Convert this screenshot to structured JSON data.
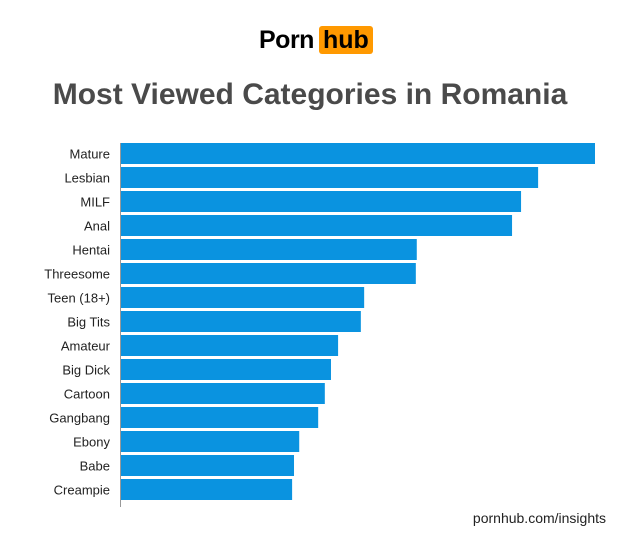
{
  "logo": {
    "part1": "Porn",
    "part2": "hub",
    "accent": "#ff9900"
  },
  "footer": "pornhub.com/insights",
  "chart_data": {
    "type": "bar",
    "orientation": "horizontal",
    "title": "Most Viewed Categories in Romania",
    "categories": [
      "Mature",
      "Lesbian",
      "MILF",
      "Anal",
      "Hentai",
      "Threesome",
      "Teen (18+)",
      "Big Tits",
      "Amateur",
      "Big Dick",
      "Cartoon",
      "Gangbang",
      "Ebony",
      "Babe",
      "Creampie"
    ],
    "values": [
      100,
      88,
      84.4,
      82.5,
      62.4,
      62.2,
      51.3,
      50.6,
      45.8,
      44.3,
      43,
      41.6,
      37.6,
      36.5,
      36.1
    ],
    "value_scale": "relative (longest bar = 100); no numeric axis shown",
    "xlim": [
      0,
      100
    ],
    "grid": false,
    "bar_color": "#0a93e0"
  }
}
